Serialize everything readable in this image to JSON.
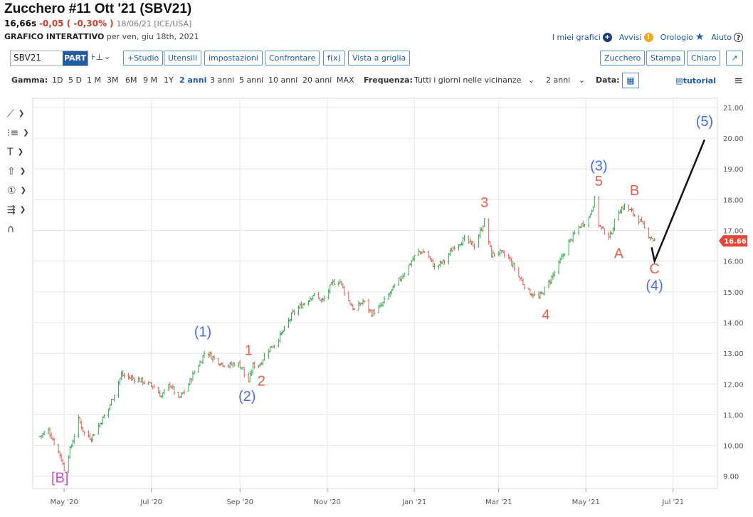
{
  "header": {
    "title": "Zucchero #11 Ott '21 (SBV21)",
    "last": "16,66s",
    "change": "-0,05 ( -0,30% )",
    "meta": "18/06/21 [ICE/USA]",
    "subtitle_bold": "GRAFICO INTERATTIVO",
    "subtitle_rest": "per ven, giu 18th, 2021"
  },
  "top_links": {
    "my_charts": "I miei grafici",
    "alerts": "Avvisi",
    "clock": "Orologio",
    "help": "Aiuto"
  },
  "toolbar": {
    "symbol": "SBV21",
    "part_badge": "PART",
    "study": "+Studio",
    "tools": "Utensili",
    "settings": "impostazioni",
    "compare": "Confrontare",
    "fx": "f(x)",
    "grid_view": "Vista a griglia",
    "sugar": "Zucchero",
    "print": "Stampa",
    "light": "Chiaro"
  },
  "range_bar": {
    "range_label": "Gamma:",
    "ranges": [
      "1D",
      "5 D",
      "1 M",
      "3M",
      "6M",
      "9 M",
      "1Y",
      "2 anni",
      "3 anni",
      "5 anni",
      "10 anni",
      "20 anni",
      "MAX"
    ],
    "active_range": "2 anni",
    "freq_label": "Frequenza:",
    "freq_value": "Tutti i giorni nelle vicinanze",
    "period_value": "2 anni",
    "date_label": "Data:",
    "tutorial": "tutorial"
  },
  "colors": {
    "up": "#3aaa55",
    "down": "#e0625a",
    "wave_red": "#e8604d",
    "wave_blue": "#4a6fd8",
    "wave_magenta": "#d54fd0",
    "accent": "#1e5aa8",
    "price_badge": "#e0463a"
  },
  "chart_data": {
    "type": "line",
    "title": "",
    "xlabel": "",
    "ylabel": "",
    "ylim": [
      8.6,
      21.3
    ],
    "y_ticks": [
      "21.00",
      "20.00",
      "19.00",
      "18.00",
      "17.00",
      "16.00",
      "15.00",
      "14.00",
      "13.00",
      "12.00",
      "11.00",
      "10.00",
      "9.00"
    ],
    "x_ticks": [
      "May '20",
      "Jul '20",
      "Sep '20",
      "Nov '20",
      "Jan '21",
      "Mar '21",
      "May '21",
      "Jul '21"
    ],
    "last_price_label": "16.66",
    "grid": true,
    "price_path": {
      "x": [
        "2020-04-14",
        "2020-04-20",
        "2020-04-24",
        "2020-04-28",
        "2020-05-01",
        "2020-05-06",
        "2020-05-11",
        "2020-05-15",
        "2020-05-20",
        "2020-05-27",
        "2020-06-01",
        "2020-06-05",
        "2020-06-10",
        "2020-06-16",
        "2020-06-22",
        "2020-06-29",
        "2020-07-03",
        "2020-07-08",
        "2020-07-14",
        "2020-07-20",
        "2020-07-26",
        "2020-07-31",
        "2020-08-04",
        "2020-08-08",
        "2020-08-12",
        "2020-08-18",
        "2020-08-24",
        "2020-08-30",
        "2020-09-03",
        "2020-09-06",
        "2020-09-10",
        "2020-09-15",
        "2020-09-20",
        "2020-09-25",
        "2020-10-01",
        "2020-10-08",
        "2020-10-15",
        "2020-10-22",
        "2020-10-29",
        "2020-11-05",
        "2020-11-10",
        "2020-11-15",
        "2020-11-20",
        "2020-11-26",
        "2020-12-02",
        "2020-12-08",
        "2020-12-14",
        "2020-12-20",
        "2020-12-26",
        "2021-01-03",
        "2021-01-09",
        "2021-01-15",
        "2021-01-22",
        "2021-01-29",
        "2021-02-05",
        "2021-02-12",
        "2021-02-19",
        "2021-02-24",
        "2021-03-01",
        "2021-03-08",
        "2021-03-15",
        "2021-03-22",
        "2021-03-29",
        "2021-04-05",
        "2021-04-12",
        "2021-04-19",
        "2021-04-26",
        "2021-05-03",
        "2021-05-07",
        "2021-05-10",
        "2021-05-13",
        "2021-05-18",
        "2021-05-23",
        "2021-05-28",
        "2021-06-02",
        "2021-06-08",
        "2021-06-13",
        "2021-06-18"
      ],
      "y": [
        10.3,
        10.5,
        10.1,
        9.7,
        9.25,
        10.0,
        10.85,
        10.4,
        10.25,
        10.8,
        11.2,
        11.7,
        12.3,
        12.2,
        12.15,
        12.0,
        11.9,
        11.6,
        12.0,
        11.5,
        11.9,
        12.4,
        12.7,
        13.1,
        12.9,
        12.7,
        12.6,
        12.7,
        12.5,
        11.9,
        12.6,
        12.65,
        13.1,
        13.3,
        13.7,
        14.3,
        14.6,
        14.9,
        14.7,
        15.3,
        15.35,
        14.8,
        14.4,
        14.7,
        14.3,
        14.5,
        14.9,
        15.3,
        15.7,
        16.3,
        16.3,
        15.8,
        16.0,
        16.5,
        16.7,
        16.5,
        17.3,
        16.2,
        16.3,
        16.1,
        15.5,
        15.0,
        14.8,
        15.3,
        15.9,
        16.6,
        17.1,
        17.4,
        18.0,
        17.2,
        17.0,
        16.8,
        17.6,
        17.8,
        17.6,
        17.3,
        16.9,
        16.66
      ]
    },
    "projection": {
      "x": [
        "2021-06-16",
        "2021-06-18",
        "2021-07-23"
      ],
      "y": [
        16.45,
        16.0,
        19.95
      ]
    },
    "wave_labels": [
      {
        "text": "[B]",
        "color": "magenta",
        "x": "2020-04-28",
        "y": 8.8
      },
      {
        "text": "(1)",
        "color": "blue",
        "x": "2020-08-06",
        "y": 13.55
      },
      {
        "text": "1",
        "color": "red",
        "x": "2020-09-07",
        "y": 12.95
      },
      {
        "text": "2",
        "color": "red",
        "x": "2020-09-16",
        "y": 11.95
      },
      {
        "text": "(2)",
        "color": "blue",
        "x": "2020-09-06",
        "y": 11.45
      },
      {
        "text": "3",
        "color": "red",
        "x": "2021-02-19",
        "y": 17.75
      },
      {
        "text": "4",
        "color": "red",
        "x": "2021-04-03",
        "y": 14.1
      },
      {
        "text": "(3)",
        "color": "blue",
        "x": "2021-05-10",
        "y": 18.95
      },
      {
        "text": "5",
        "color": "red",
        "x": "2021-05-10",
        "y": 18.45
      },
      {
        "text": "A",
        "color": "red",
        "x": "2021-05-24",
        "y": 16.1
      },
      {
        "text": "B",
        "color": "red",
        "x": "2021-06-04",
        "y": 18.15
      },
      {
        "text": "C",
        "color": "red",
        "x": "2021-06-18",
        "y": 15.6
      },
      {
        "text": "(4)",
        "color": "blue",
        "x": "2021-06-18",
        "y": 15.05
      },
      {
        "text": "(5)",
        "color": "blue",
        "x": "2021-07-23",
        "y": 20.4
      }
    ]
  }
}
